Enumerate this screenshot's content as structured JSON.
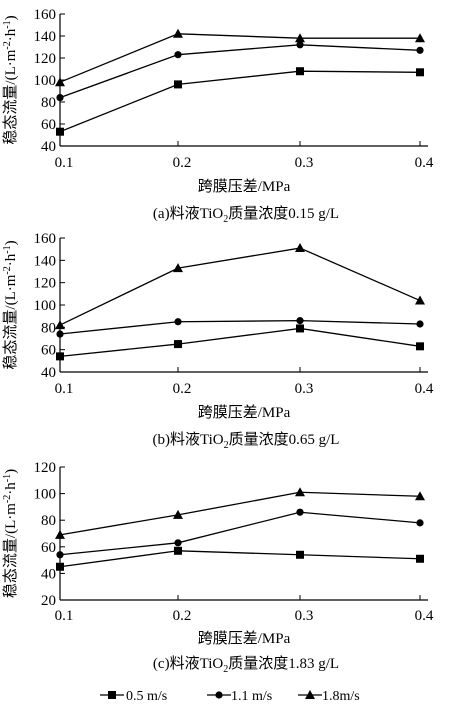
{
  "chart_data": [
    {
      "type": "line",
      "caption_prefix": "(a)料液TiO",
      "caption_sub": "2",
      "caption_suffix": "质量浓度0.15 g/L",
      "xlabel": "跨膜压差/MPa",
      "ylabel_prefix": "稳态流量/(L·m",
      "ylabel_sup1": "-2",
      "ylabel_mid": "·h",
      "ylabel_sup2": "-1",
      "ylabel_suffix": ")",
      "x": [
        0.1,
        0.2,
        0.3,
        0.4
      ],
      "x_ticks": [
        "0.1",
        "0.2",
        "0.3",
        "0.4"
      ],
      "y_ticks": [
        "40",
        "60",
        "80",
        "100",
        "120",
        "140",
        "160"
      ],
      "ylim": [
        40,
        160
      ],
      "series": [
        {
          "name": "0.5 m/s",
          "marker": "square",
          "values": [
            53,
            96,
            108,
            107
          ]
        },
        {
          "name": "1.1 m/s",
          "marker": "circle",
          "values": [
            84,
            123,
            132,
            127
          ]
        },
        {
          "name": "1.8m/s",
          "marker": "triangle",
          "values": [
            98,
            142,
            138,
            138
          ]
        }
      ]
    },
    {
      "type": "line",
      "caption_prefix": "(b)料液TiO",
      "caption_sub": "2",
      "caption_suffix": "质量浓度0.65 g/L",
      "xlabel": "跨膜压差/MPa",
      "ylabel_prefix": "稳态流量/(L·m",
      "ylabel_sup1": "-2",
      "ylabel_mid": "·h",
      "ylabel_sup2": "-1",
      "ylabel_suffix": ")",
      "x": [
        0.1,
        0.2,
        0.3,
        0.4
      ],
      "x_ticks": [
        "0.1",
        "0.2",
        "0.3",
        "0.4"
      ],
      "y_ticks": [
        "40",
        "60",
        "80",
        "100",
        "120",
        "140",
        "160"
      ],
      "ylim": [
        40,
        160
      ],
      "series": [
        {
          "name": "0.5 m/s",
          "marker": "square",
          "values": [
            54,
            65,
            79,
            63
          ]
        },
        {
          "name": "1.1 m/s",
          "marker": "circle",
          "values": [
            74,
            85,
            86,
            83
          ]
        },
        {
          "name": "1.8m/s",
          "marker": "triangle",
          "values": [
            82,
            133,
            151,
            104
          ]
        }
      ]
    },
    {
      "type": "line",
      "caption_prefix": "(c)料液TiO",
      "caption_sub": "2",
      "caption_suffix": "质量浓度1.83 g/L",
      "xlabel": "跨膜压差/MPa",
      "ylabel_prefix": "稳态流量/(L·m",
      "ylabel_sup1": "-2",
      "ylabel_mid": "·h",
      "ylabel_sup2": "-1",
      "ylabel_suffix": ")",
      "x": [
        0.1,
        0.2,
        0.3,
        0.4
      ],
      "x_ticks": [
        "0.1",
        "0.2",
        "0.3",
        "0.4"
      ],
      "y_ticks": [
        "20",
        "40",
        "60",
        "80",
        "100",
        "120"
      ],
      "ylim": [
        20,
        120
      ],
      "series": [
        {
          "name": "0.5 m/s",
          "marker": "square",
          "values": [
            45,
            57,
            54,
            51
          ]
        },
        {
          "name": "1.1 m/s",
          "marker": "circle",
          "values": [
            54,
            63,
            86,
            78
          ]
        },
        {
          "name": "1.8m/s",
          "marker": "triangle",
          "values": [
            69,
            84,
            101,
            98
          ]
        }
      ]
    }
  ],
  "legend": [
    {
      "label": "0.5 m/s",
      "marker": "square"
    },
    {
      "label": "1.1 m/s",
      "marker": "circle"
    },
    {
      "label": "1.8m/s",
      "marker": "triangle"
    }
  ],
  "colors": {
    "line": "#000000",
    "background": "#ffffff"
  }
}
